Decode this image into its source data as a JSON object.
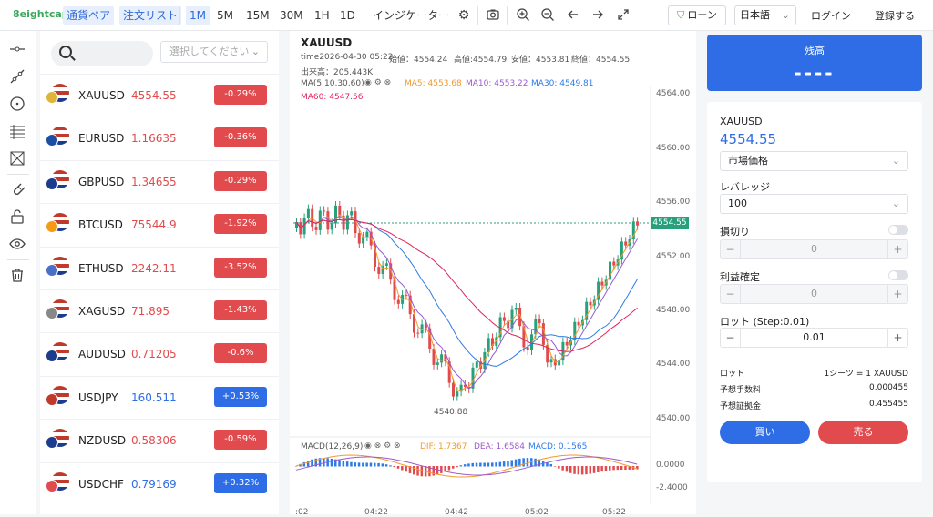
{
  "brand": {
    "logo_text": "8eightcap"
  },
  "toolbar": {
    "pairs_label": "通貨ペア",
    "orders_label": "注文リスト",
    "timeframes": [
      "1M",
      "5M",
      "15M",
      "30M",
      "1H",
      "1D"
    ],
    "active_timeframe": "1M",
    "indicator_label": "インジケーター",
    "loan_label": "ローン",
    "language": "日本語",
    "login_label": "ログイン",
    "register_label": "登録する"
  },
  "market": {
    "search_placeholder": "",
    "filter_placeholder": "選択してください",
    "items": [
      {
        "symbol": "XAUUSD",
        "price": "4554.55",
        "change": "-0.29%",
        "direction": "down",
        "icon": "gold-usd-flag-icon"
      },
      {
        "symbol": "EURUSD",
        "price": "1.16635",
        "change": "-0.36%",
        "direction": "down",
        "icon": "eur-usd-flag-icon"
      },
      {
        "symbol": "GBPUSD",
        "price": "1.34655",
        "change": "-0.29%",
        "direction": "down",
        "icon": "gbp-usd-flag-icon"
      },
      {
        "symbol": "BTCUSD",
        "price": "75544.9",
        "change": "-1.92%",
        "direction": "down",
        "icon": "btc-usd-flag-icon"
      },
      {
        "symbol": "ETHUSD",
        "price": "2242.11",
        "change": "-3.52%",
        "direction": "down",
        "icon": "eth-usd-flag-icon"
      },
      {
        "symbol": "XAGUSD",
        "price": "71.895",
        "change": "-1.43%",
        "direction": "down",
        "icon": "silver-usd-flag-icon"
      },
      {
        "symbol": "AUDUSD",
        "price": "0.71205",
        "change": "-0.6%",
        "direction": "down",
        "icon": "aud-usd-flag-icon"
      },
      {
        "symbol": "USDJPY",
        "price": "160.511",
        "change": "+0.53%",
        "direction": "up",
        "icon": "usd-jpy-flag-icon"
      },
      {
        "symbol": "NZDUSD",
        "price": "0.58306",
        "change": "-0.59%",
        "direction": "down",
        "icon": "nzd-usd-flag-icon"
      },
      {
        "symbol": "USDCHF",
        "price": "0.79169",
        "change": "+0.32%",
        "direction": "up",
        "icon": "usd-chf-flag-icon"
      }
    ]
  },
  "chart": {
    "symbol": "XAUUSD",
    "time_label": "time2026-04-30 05:22",
    "open_label": "始値：4554.24",
    "high_label": "高値:4554.79",
    "low_label": "安値：4553.81",
    "close_label": "終値：4554.55",
    "volume_label": "出来高：205.443K",
    "ma_label": "MA(5,10,30,60)",
    "ma5_label": "MA5: 4553.68",
    "ma10_label": "MA10: 4553.22",
    "ma30_label": "MA30: 4549.81",
    "ma60_label": "MA60: 4547.56",
    "macd_label": "MACD(12,26,9)",
    "dif_label": "DIF: 1.7367",
    "dea_label": "DEA: 1.6584",
    "macd_value_label": "MACD: 0.1565",
    "current_price": "4554.55",
    "min_marker": "4540.88",
    "y_ticks": [
      "4564.00",
      "4560.00",
      "4556.00",
      "4552.00",
      "4548.00",
      "4544.00",
      "4540.00"
    ],
    "macd_ticks": [
      "0.0000",
      "-2.4000"
    ],
    "x_ticks": [
      ":02",
      "04:22",
      "04:42",
      "05:02",
      "05:22"
    ],
    "colors": {
      "up": "#26a17b",
      "down": "#e24b4e",
      "ma5": "#f29a2e",
      "ma10": "#9b59d0",
      "ma30": "#2e7be6",
      "ma60": "#e0245e"
    }
  },
  "panel": {
    "balance_title": "残高",
    "balance_value": "----",
    "symbol": "XAUUSD",
    "price": "4554.55",
    "order_type": "市場価格",
    "leverage_label": "レバレッジ",
    "leverage_value": "100",
    "stoploss_label": "損切り",
    "stoploss_value": "0",
    "takeprofit_label": "利益確定",
    "takeprofit_value": "0",
    "lot_label": "ロット (Step:0.01)",
    "lot_value": "0.01",
    "lot_info_key": "ロット",
    "lot_info_value": "1シーツ = 1 XAUUSD",
    "fee_key": "予想手数料",
    "fee_value": "0.000455",
    "margin_key": "予想証拠金",
    "margin_value": "0.455455",
    "buy_label": "買い",
    "sell_label": "売る"
  }
}
